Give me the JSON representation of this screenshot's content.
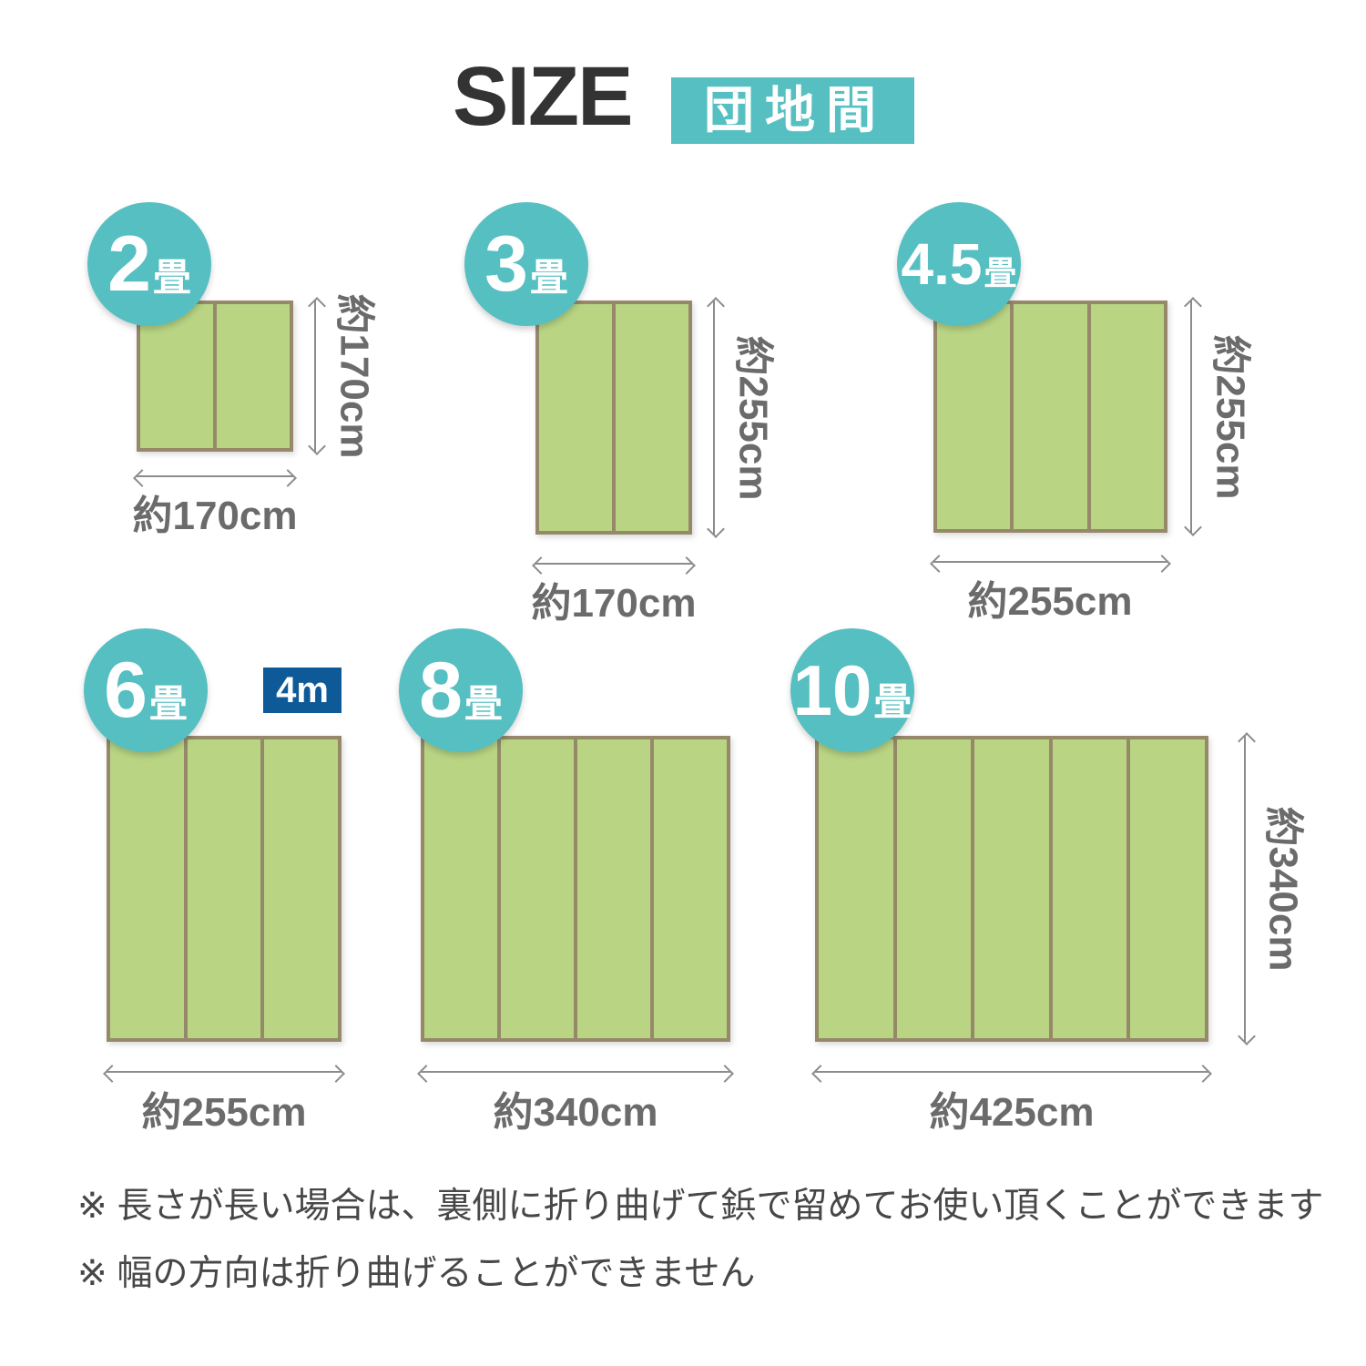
{
  "title": {
    "heading": "SIZE",
    "standard_badge": "団地間"
  },
  "colors": {
    "teal": "#56BFC2",
    "mat_green": "#B9D584",
    "mat_border": "#95896A",
    "length_badge_blue": "#0E5A99",
    "arrow_gray": "#8C8C8C",
    "dimension_text_gray": "#6B6B6B",
    "heading_text": "#333333",
    "note_text": "#474747"
  },
  "sizes": [
    {
      "name": "2畳",
      "count": "2",
      "unit": "畳",
      "panels": 2,
      "width_label": "約170cm",
      "height_label": "約170cm"
    },
    {
      "name": "3畳",
      "count": "3",
      "unit": "畳",
      "panels": 2,
      "width_label": "約170cm",
      "height_label": "約255cm"
    },
    {
      "name": "4.5畳",
      "count": "4.5",
      "unit": "畳",
      "panels": 3,
      "width_label": "約255cm",
      "height_label": "約255cm"
    },
    {
      "name": "6畳",
      "count": "6",
      "unit": "畳",
      "panels": 3,
      "width_label": "約255cm",
      "length_badge": "4m"
    },
    {
      "name": "8畳",
      "count": "8",
      "unit": "畳",
      "panels": 4,
      "width_label": "約340cm"
    },
    {
      "name": "10畳",
      "count": "10",
      "unit": "畳",
      "panels": 5,
      "width_label": "約425cm",
      "height_label": "約340cm"
    }
  ],
  "notes": [
    "※ 長さが長い場合は、裏側に折り曲げて鋲で留めてお使い頂くことができます",
    "※ 幅の方向は折り曲げることができません"
  ]
}
